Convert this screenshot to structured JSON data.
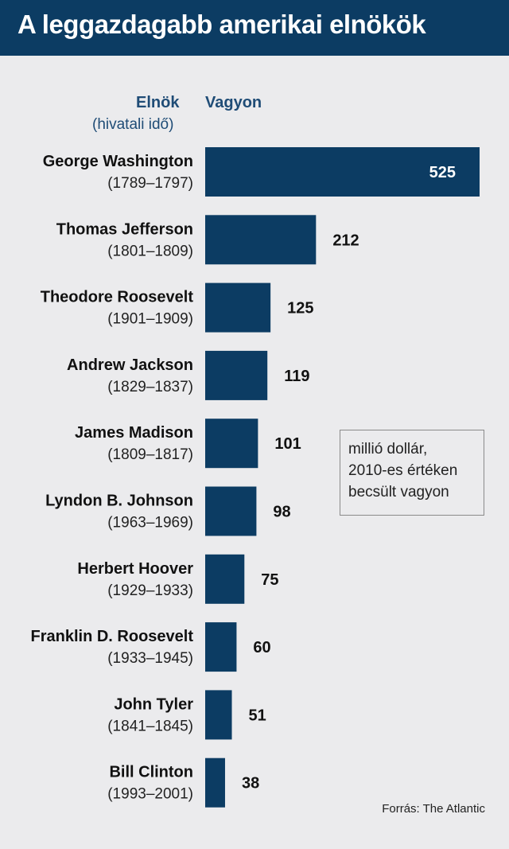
{
  "header": {
    "title": "A leggazdagabb amerikai elnökök"
  },
  "columns": {
    "name_header": "Elnök",
    "name_sub": "(hivatali idő)",
    "value_header": "Vagyon"
  },
  "note": {
    "line1": "millió dollár,",
    "line2": "2010-es értéken",
    "line3": "becsült vagyon"
  },
  "source": "Forrás: The Atlantic",
  "colors": {
    "bar": "#0c3c63",
    "background": "#ebebed",
    "accent_text": "#1f4c76"
  },
  "chart_data": {
    "type": "bar",
    "orientation": "horizontal",
    "categories": [
      {
        "name": "George Washington",
        "term": "(1789–1797)"
      },
      {
        "name": "Thomas Jefferson",
        "term": "(1801–1809)"
      },
      {
        "name": "Theodore Roosevelt",
        "term": "(1901–1909)"
      },
      {
        "name": "Andrew Jackson",
        "term": "(1829–1837)"
      },
      {
        "name": "James Madison",
        "term": "(1809–1817)"
      },
      {
        "name": "Lyndon B. Johnson",
        "term": "(1963–1969)"
      },
      {
        "name": "Herbert Hoover",
        "term": "(1929–1933)"
      },
      {
        "name": "Franklin D. Roosevelt",
        "term": "(1933–1945)"
      },
      {
        "name": "John Tyler",
        "term": "(1841–1845)"
      },
      {
        "name": "Bill Clinton",
        "term": "(1993–2001)"
      }
    ],
    "values": [
      525,
      212,
      125,
      119,
      101,
      98,
      75,
      60,
      51,
      38
    ],
    "data_labels": [
      "525",
      "212",
      "125",
      "119",
      "101",
      "98",
      "75",
      "60",
      "51",
      "38"
    ],
    "xlim": [
      0,
      525
    ],
    "grid": false,
    "legend": "none"
  }
}
